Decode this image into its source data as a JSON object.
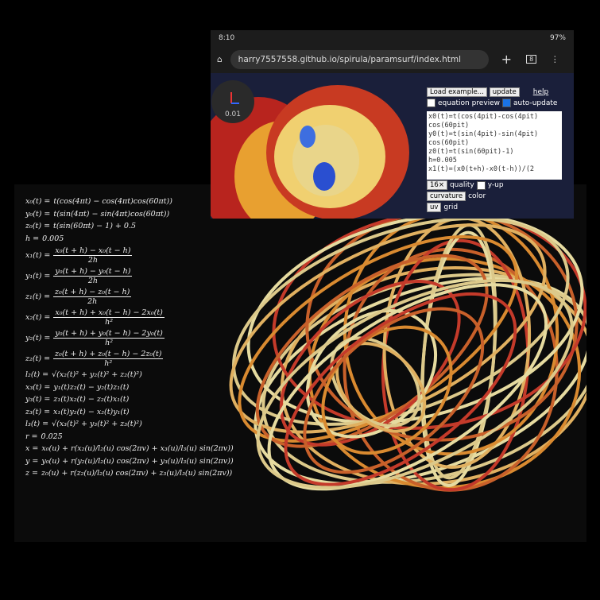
{
  "status_bar": {
    "time": "8:10",
    "battery": "97%"
  },
  "browser": {
    "url": "harry7557558.github.io/spirula/paramsurf/index.html",
    "tab_count": "8"
  },
  "viewer": {
    "scale_label": "0.01"
  },
  "panel": {
    "example_select": "Load example...",
    "update_button": "update",
    "help_link": "help",
    "equation_preview": "equation preview",
    "auto_update": "auto-update",
    "code_lines": [
      "x0(t)=t(cos(4pit)-cos(4pit)",
      "cos(60pit)",
      "y0(t)=t(sin(4pit)-sin(4pit)",
      "cos(60pit)",
      "z0(t)=t(sin(60pit)-1)",
      "h=0.005",
      "x1(t)=(x0(t+h)-x0(t-h))/(2"
    ],
    "quality_select": "16×",
    "quality_label": "quality",
    "y_up": "y-up",
    "color_select": "curvature",
    "color_label": "color",
    "grid_select": "uv",
    "grid_label": "grid"
  },
  "equations": [
    {
      "lhs": "x₀(t) =",
      "rhs": "t(cos(4πt) − cos(4πt)cos(60πt))"
    },
    {
      "lhs": "y₀(t) =",
      "rhs": "t(sin(4πt) − sin(4πt)cos(60πt))"
    },
    {
      "lhs": "z₀(t) =",
      "rhs": "t(sin(60πt) − 1) + 0.5"
    },
    {
      "lhs": "h =",
      "rhs": "0.005"
    },
    {
      "lhs": "x₁(t) =",
      "num": "x₀(t + h) − x₀(t − h)",
      "den": "2h"
    },
    {
      "lhs": "y₁(t) =",
      "num": "y₀(t + h) − y₀(t − h)",
      "den": "2h"
    },
    {
      "lhs": "z₁(t) =",
      "num": "z₀(t + h) − z₀(t − h)",
      "den": "2h"
    },
    {
      "lhs": "x₂(t) =",
      "num": "x₀(t + h) + x₀(t − h) − 2x₀(t)",
      "den": "h²"
    },
    {
      "lhs": "y₂(t) =",
      "num": "y₀(t + h) + y₀(t − h) − 2y₀(t)",
      "den": "h²"
    },
    {
      "lhs": "z₂(t) =",
      "num": "z₀(t + h) + z₀(t − h) − 2z₀(t)",
      "den": "h²"
    },
    {
      "lhs": "l₂(t) =",
      "rhs": "√(x₂(t)² + y₂(t)² + z₂(t)²)"
    },
    {
      "lhs": "x₃(t) =",
      "rhs": "y₁(t)z₂(t) − y₂(t)z₁(t)"
    },
    {
      "lhs": "y₃(t) =",
      "rhs": "z₁(t)x₂(t) − z₂(t)x₁(t)"
    },
    {
      "lhs": "z₃(t) =",
      "rhs": "x₁(t)y₂(t) − x₂(t)y₁(t)"
    },
    {
      "lhs": "l₃(t) =",
      "rhs": "√(x₃(t)² + y₃(t)² + z₃(t)²)"
    },
    {
      "lhs": "r =",
      "rhs": "0.025"
    },
    {
      "lhs": "x =",
      "rhs": "x₀(u) + r(x₂(u)/l₂(u) cos(2πv) + x₃(u)/l₃(u) sin(2πv))"
    },
    {
      "lhs": "y =",
      "rhs": "y₀(u) + r(y₂(u)/l₂(u) cos(2πv) + y₃(u)/l₃(u) sin(2πv))"
    },
    {
      "lhs": "z =",
      "rhs": "z₀(u) + r(z₂(u)/l₂(u) cos(2πv) + z₃(u)/l₃(u) sin(2πv))"
    }
  ]
}
